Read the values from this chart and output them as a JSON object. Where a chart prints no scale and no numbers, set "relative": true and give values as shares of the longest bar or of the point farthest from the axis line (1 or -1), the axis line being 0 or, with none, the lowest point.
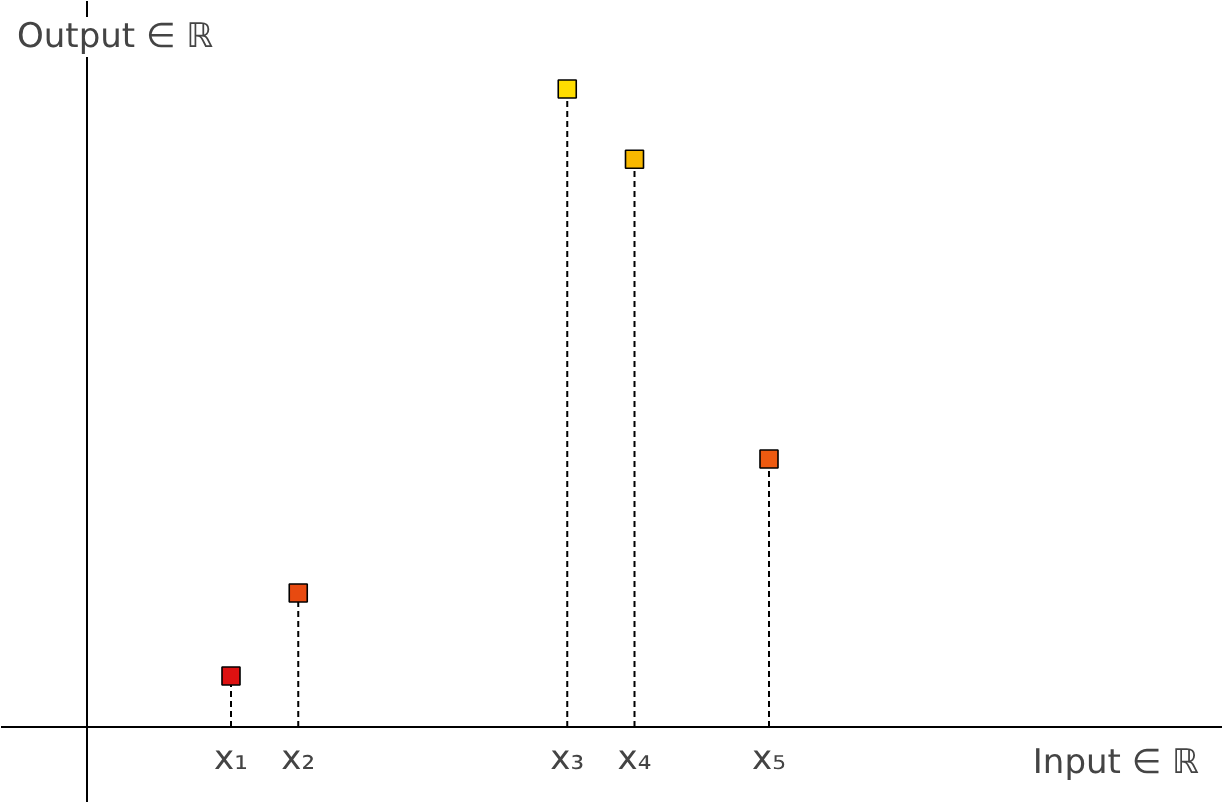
{
  "chart_data": {
    "type": "lollipop",
    "relative": true,
    "ylabel": "Output ∈ ℝ",
    "annotations": [
      "Input ∈ ℝ"
    ],
    "categories": [
      "x₁",
      "x₂",
      null,
      null,
      null,
      "x₃",
      "x₄",
      null,
      "x₅"
    ],
    "values": [
      0.08,
      0.21,
      null,
      null,
      null,
      1,
      0.89,
      null,
      0.42
    ],
    "colors": [
      "#dd1111",
      "#e84a10",
      null,
      null,
      null,
      "#ffdd00",
      "#f8b800",
      null,
      "#ee5a10"
    ],
    "line_style": "dashed",
    "marker": "square"
  }
}
